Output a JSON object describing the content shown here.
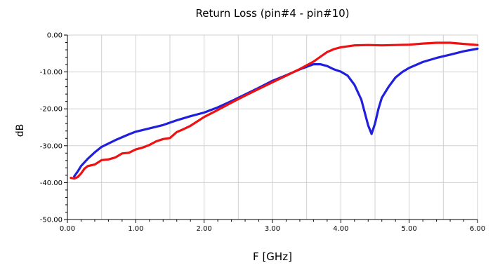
{
  "chart_data": {
    "type": "line",
    "title": "Return Loss (pin#4 - pin#10)",
    "xlabel": "F [GHz]",
    "ylabel": "dB",
    "xlim": [
      0,
      6
    ],
    "ylim": [
      -50,
      0
    ],
    "x_ticks": [
      "0.00",
      "1.00",
      "2.00",
      "3.00",
      "4.00",
      "5.00",
      "6.00"
    ],
    "y_ticks": [
      "0.00",
      "-10.00",
      "-20.00",
      "-30.00",
      "-40.00",
      "-50.00"
    ],
    "x_tick_values": [
      0,
      1,
      2,
      3,
      4,
      5,
      6
    ],
    "y_tick_values": [
      0,
      -10,
      -20,
      -30,
      -40,
      -50
    ],
    "grid": true,
    "series": [
      {
        "color": "#1f1fdd",
        "x": [
          0.1,
          0.15,
          0.2,
          0.3,
          0.4,
          0.5,
          0.7,
          0.9,
          1.0,
          1.2,
          1.4,
          1.6,
          1.8,
          2.0,
          2.2,
          2.4,
          2.6,
          2.8,
          3.0,
          3.2,
          3.4,
          3.5,
          3.6,
          3.7,
          3.8,
          3.9,
          4.0,
          4.1,
          4.2,
          4.3,
          4.4,
          4.45,
          4.5,
          4.55,
          4.6,
          4.7,
          4.8,
          4.9,
          5.0,
          5.2,
          5.4,
          5.6,
          5.8,
          6.0
        ],
        "y": [
          -38.3,
          -37.0,
          -35.5,
          -33.5,
          -31.8,
          -30.3,
          -28.5,
          -26.9,
          -26.2,
          -25.3,
          -24.4,
          -23.1,
          -22.0,
          -21.0,
          -19.6,
          -17.9,
          -16.1,
          -14.3,
          -12.4,
          -10.9,
          -9.3,
          -8.6,
          -7.9,
          -7.9,
          -8.4,
          -9.3,
          -9.9,
          -11.0,
          -13.5,
          -17.5,
          -24.5,
          -26.8,
          -24.0,
          -20.0,
          -17.0,
          -14.0,
          -11.5,
          -10.0,
          -8.9,
          -7.3,
          -6.2,
          -5.3,
          -4.4,
          -3.7
        ]
      },
      {
        "color": "#ee1111",
        "x": [
          0.05,
          0.1,
          0.15,
          0.2,
          0.25,
          0.3,
          0.4,
          0.5,
          0.6,
          0.7,
          0.8,
          0.9,
          1.0,
          1.1,
          1.2,
          1.3,
          1.4,
          1.5,
          1.6,
          1.7,
          1.8,
          2.0,
          2.2,
          2.4,
          2.6,
          2.8,
          3.0,
          3.2,
          3.4,
          3.6,
          3.7,
          3.8,
          3.9,
          4.0,
          4.2,
          4.4,
          4.6,
          4.8,
          5.0,
          5.2,
          5.4,
          5.6,
          5.8,
          6.0
        ],
        "y": [
          -38.7,
          -38.9,
          -38.5,
          -37.5,
          -36.2,
          -35.5,
          -35.1,
          -33.9,
          -33.7,
          -33.2,
          -32.1,
          -31.9,
          -31.0,
          -30.5,
          -29.8,
          -28.8,
          -28.2,
          -27.9,
          -26.3,
          -25.5,
          -24.6,
          -22.2,
          -20.3,
          -18.3,
          -16.4,
          -14.6,
          -12.8,
          -11.0,
          -9.2,
          -7.2,
          -5.9,
          -4.6,
          -3.8,
          -3.3,
          -2.8,
          -2.7,
          -2.8,
          -2.7,
          -2.6,
          -2.3,
          -2.1,
          -2.1,
          -2.4,
          -2.7
        ]
      }
    ]
  }
}
